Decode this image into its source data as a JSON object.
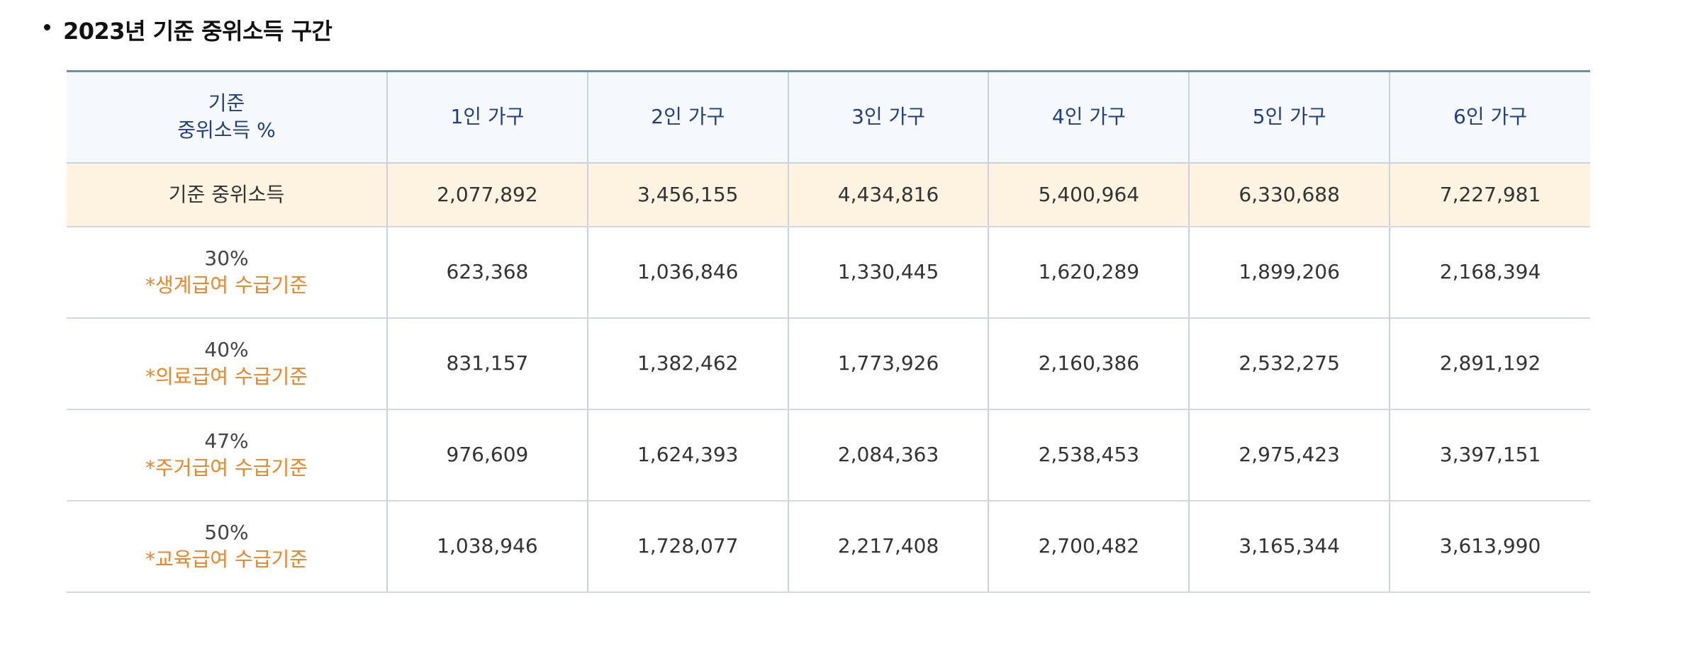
{
  "heading": {
    "title": "2023년 기준 중위소득 구간"
  },
  "table": {
    "header": {
      "first_line1": "기준",
      "first_line2": "중위소득 %",
      "columns": [
        "1인 가구",
        "2인 가구",
        "3인 가구",
        "4인 가구",
        "5인 가구",
        "6인 가구"
      ]
    },
    "median_row": {
      "label": "기준 중위소득",
      "values": [
        "2,077,892",
        "3,456,155",
        "4,434,816",
        "5,400,964",
        "6,330,688",
        "7,227,981"
      ]
    },
    "rows": [
      {
        "percent": "30%",
        "note": "*생계급여 수급기준",
        "values": [
          "623,368",
          "1,036,846",
          "1,330,445",
          "1,620,289",
          "1,899,206",
          "2,168,394"
        ]
      },
      {
        "percent": "40%",
        "note": "*의료급여 수급기준",
        "values": [
          "831,157",
          "1,382,462",
          "1,773,926",
          "2,160,386",
          "2,532,275",
          "2,891,192"
        ]
      },
      {
        "percent": "47%",
        "note": "*주거급여 수급기준",
        "values": [
          "976,609",
          "1,624,393",
          "2,084,363",
          "2,538,453",
          "2,975,423",
          "3,397,151"
        ]
      },
      {
        "percent": "50%",
        "note": "*교육급여 수급기준",
        "values": [
          "1,038,946",
          "1,728,077",
          "2,217,408",
          "2,700,482",
          "3,165,344",
          "3,613,990"
        ]
      }
    ]
  },
  "colors": {
    "header_text": "#1f3f86",
    "header_bg": "#f5f8fd",
    "median_bg": "#fef3e1",
    "note_text": "#e8862a"
  }
}
